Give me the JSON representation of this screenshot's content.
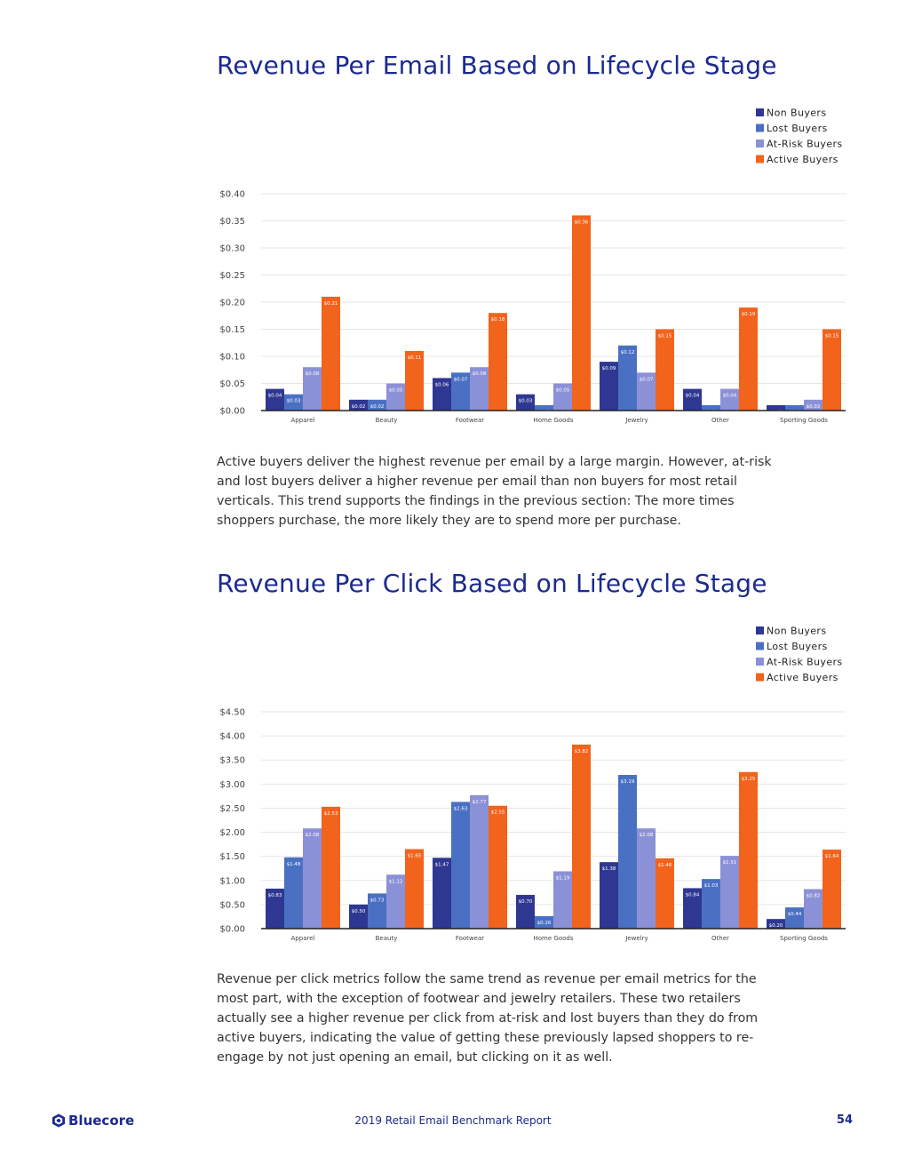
{
  "colors": {
    "title": "#1b2a8f",
    "series": [
      "#2e3791",
      "#4a70c4",
      "#8b91d6",
      "#f2631c"
    ],
    "grid": "#e6e6e6"
  },
  "sections": [
    {
      "title": "Revenue Per Email Based on Lifecycle Stage",
      "paragraph": "Active buyers deliver the highest revenue per email by a large margin. However, at-risk and lost buyers deliver a higher revenue per email than non buyers for most retail verticals. This trend supports the findings in the previous section: The more times shoppers purchase, the more likely they are to spend more per purchase."
    },
    {
      "title": "Revenue Per Click Based on Lifecycle Stage",
      "paragraph": "Revenue per click metrics follow the same trend as revenue per email metrics for the most part, with the exception of footwear and jewelry retailers. These two retailers actually see a higher revenue per click from at-risk and lost buyers than they do from active buyers, indicating the value of getting these previously lapsed shoppers to re-engage by not just opening an email, but clicking on it as well."
    }
  ],
  "chart_data": [
    {
      "type": "bar",
      "title": "Revenue Per Email Based on Lifecycle Stage",
      "categories": [
        "Apparel",
        "Beauty",
        "Footwear",
        "Home Goods",
        "Jewelry",
        "Other",
        "Sporting Goods"
      ],
      "series": [
        {
          "name": "Non Buyers",
          "values": [
            0.04,
            0.02,
            0.06,
            0.03,
            0.09,
            0.04,
            0.01
          ],
          "labels": [
            "$0.04",
            "$0.02",
            "$0.06",
            "$0.03",
            "$0.09",
            "$0.04",
            "$0.01"
          ]
        },
        {
          "name": "Lost Buyers",
          "values": [
            0.03,
            0.02,
            0.07,
            0.01,
            0.12,
            0.01,
            0.01
          ],
          "labels": [
            "$0.03",
            "$0.02",
            "$0.07",
            "$0.01",
            "$0.12",
            "$0.01",
            "$0.01"
          ]
        },
        {
          "name": "At-Risk Buyers",
          "values": [
            0.08,
            0.05,
            0.08,
            0.05,
            0.07,
            0.04,
            0.02
          ],
          "labels": [
            "$0.08",
            "$0.05",
            "$0.08",
            "$0.05",
            "$0.07",
            "$0.04",
            "$0.02"
          ]
        },
        {
          "name": "Active Buyers",
          "values": [
            0.21,
            0.11,
            0.18,
            0.36,
            0.15,
            0.19,
            0.15
          ],
          "labels": [
            "$0.21",
            "$0.11",
            "$0.18",
            "$0.36",
            "$0.15",
            "$0.19",
            "$0.15"
          ]
        }
      ],
      "yticks": [
        "$0.00",
        "$0.05",
        "$0.10",
        "$0.15",
        "$0.20",
        "$0.25",
        "$0.30",
        "$0.35",
        "$0.40"
      ],
      "ylim": [
        0,
        0.4
      ],
      "legend": "top-right"
    },
    {
      "type": "bar",
      "title": "Revenue Per Click Based on Lifecycle Stage",
      "categories": [
        "Apparel",
        "Beauty",
        "Footwear",
        "Home Goods",
        "Jewelry",
        "Other",
        "Sporting Goods"
      ],
      "series": [
        {
          "name": "Non Buyers",
          "values": [
            0.83,
            0.5,
            1.47,
            0.7,
            1.38,
            0.84,
            0.2
          ],
          "labels": [
            "$0.83",
            "$0.50",
            "$1.47",
            "$0.70",
            "$1.38",
            "$0.84",
            "$0.20"
          ]
        },
        {
          "name": "Lost Buyers",
          "values": [
            1.48,
            0.73,
            2.63,
            0.26,
            3.19,
            1.03,
            0.44
          ],
          "labels": [
            "$1.48",
            "$0.73",
            "$2.63",
            "$0.26",
            "$3.19",
            "$1.03",
            "$0.44"
          ]
        },
        {
          "name": "At-Risk Buyers",
          "values": [
            2.08,
            1.12,
            2.77,
            1.19,
            2.08,
            1.51,
            0.82
          ],
          "labels": [
            "$2.08",
            "$1.12",
            "$2.77",
            "$1.19",
            "$2.08",
            "$1.51",
            "$0.82"
          ]
        },
        {
          "name": "Active Buyers",
          "values": [
            2.53,
            1.65,
            2.55,
            3.82,
            1.46,
            3.25,
            1.64
          ],
          "labels": [
            "$2.53",
            "$1.65",
            "$2.55",
            "$3.82",
            "$1.46",
            "$3.25",
            "$1.64"
          ]
        }
      ],
      "yticks": [
        "$0.00",
        "$0.50",
        "$1.00",
        "$1.50",
        "$2.00",
        "$2.50",
        "$3.00",
        "$3.50",
        "$4.00",
        "$4.50"
      ],
      "ylim": [
        0,
        4.5
      ],
      "legend": "top-right"
    }
  ],
  "footer": {
    "brand": "Bluecore",
    "brand_icon": "bluecore-logo-icon",
    "report": "2019 Retail Email Benchmark Report",
    "page": "54"
  }
}
